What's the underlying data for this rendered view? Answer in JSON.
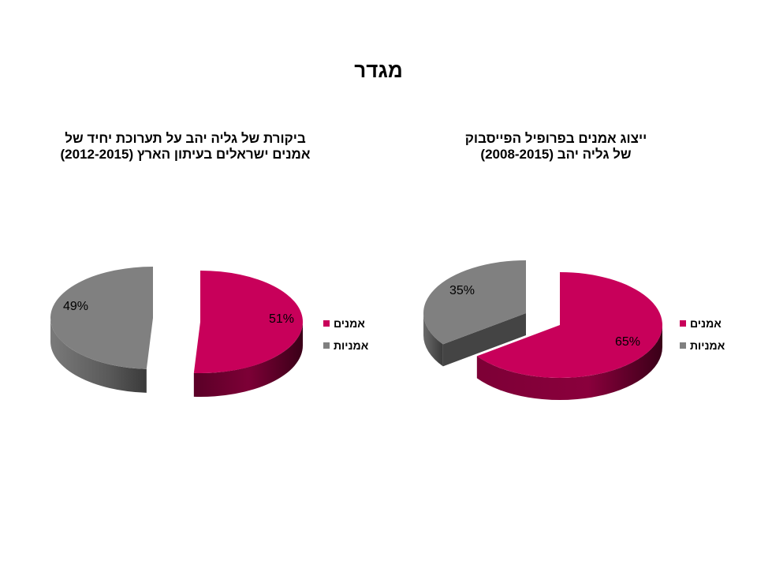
{
  "page_title": "מגדר",
  "colors": {
    "men": "#c8005a",
    "women": "#808080"
  },
  "chart_data": [
    {
      "type": "pie",
      "title_line1": "ביקורת של גליה יהב על תערוכת יחיד של",
      "title_line2": "אמנים ישראלים בעיתון הארץ (2012-2015)",
      "slices": [
        {
          "label": "אמנים",
          "value": 51,
          "display": "51%",
          "color": "#c8005a"
        },
        {
          "label": "אמניות",
          "value": 49,
          "display": "49%",
          "color": "#808080"
        }
      ],
      "legend": [
        "אמנים",
        "אמניות"
      ],
      "legend_position": "right",
      "style": "3d-exploded"
    },
    {
      "type": "pie",
      "title_line1": "ייצוג אמנים בפרופיל הפייסבוק",
      "title_line2": "של גליה יהב (2008-2015)",
      "slices": [
        {
          "label": "אמנים",
          "value": 65,
          "display": "65%",
          "color": "#c8005a"
        },
        {
          "label": "אמניות",
          "value": 35,
          "display": "35%",
          "color": "#808080"
        }
      ],
      "legend": [
        "אמנים",
        "אמניות"
      ],
      "legend_position": "right",
      "style": "3d-exploded"
    }
  ]
}
